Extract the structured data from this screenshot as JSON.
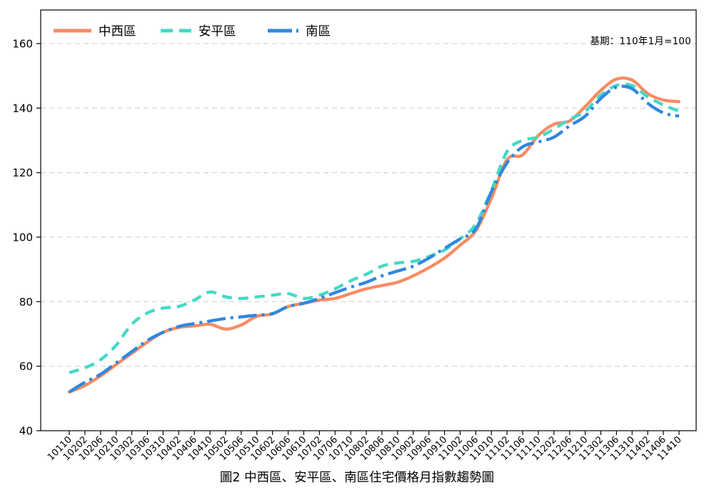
{
  "title": {
    "text": "圖2 中西區、安平區、南區住宅價格月指數趨勢圖"
  },
  "annotation": {
    "text": "基期：110年1月=100"
  },
  "legend": {
    "items": [
      {
        "label": "中西區",
        "color": "#F88B62",
        "style": "solid"
      },
      {
        "label": "安平區",
        "color": "#43D9C6",
        "style": "dashed"
      },
      {
        "label": "南區",
        "color": "#2F87E0",
        "style": "dashdot"
      }
    ]
  },
  "chart_data": {
    "type": "line",
    "title": "圖2 中西區、安平區、南區住宅價格月指數趨勢圖",
    "note": "基期：110年1月=100",
    "xlabel": "",
    "ylabel": "",
    "ylim": [
      40,
      160
    ],
    "yticks": [
      40,
      60,
      80,
      100,
      120,
      140,
      160
    ],
    "grid": "horizontal-dashed",
    "legend_position": "top-left-inside",
    "categories": [
      "10110",
      "10202",
      "10206",
      "10210",
      "10302",
      "10306",
      "10310",
      "10402",
      "10406",
      "10410",
      "10502",
      "10506",
      "10510",
      "10602",
      "10606",
      "10610",
      "10702",
      "10706",
      "10710",
      "10802",
      "10806",
      "10810",
      "10902",
      "10906",
      "10910",
      "11002",
      "11006",
      "11010",
      "11102",
      "11106",
      "11110",
      "11202",
      "11206",
      "11210",
      "11302",
      "11306",
      "11310",
      "11402",
      "11406",
      "11410"
    ],
    "series": [
      {
        "name": "中西區",
        "color": "#F88B62",
        "line_style": "solid",
        "values": [
          52,
          54,
          57,
          60.5,
          64,
          67.5,
          70.5,
          72,
          72.5,
          73,
          71.5,
          72.8,
          75.5,
          76.2,
          78.5,
          79.5,
          80.5,
          81,
          82.5,
          84,
          85,
          86,
          88,
          90.5,
          93.5,
          97.5,
          102,
          112,
          124,
          125.5,
          131.5,
          135,
          136,
          140.5,
          145.5,
          149,
          148.7,
          144.5,
          142.5,
          142
        ]
      },
      {
        "name": "安平區",
        "color": "#43D9C6",
        "line_style": "dashed",
        "values": [
          58,
          59.5,
          62,
          66.5,
          73,
          76.5,
          78,
          78.5,
          80.5,
          83,
          81.5,
          81,
          81.5,
          82,
          82.5,
          81,
          82,
          84,
          86.5,
          88.5,
          91,
          92,
          92.5,
          94,
          96,
          99.5,
          104,
          114.5,
          126.5,
          130,
          131,
          133.5,
          136.5,
          139,
          144,
          147,
          147,
          143.5,
          141,
          139
        ]
      },
      {
        "name": "南區",
        "color": "#2F87E0",
        "line_style": "dashdot",
        "values": [
          52,
          55,
          57.5,
          61,
          64.5,
          68,
          70.5,
          72.3,
          73.2,
          74,
          74.8,
          75.3,
          75.8,
          76.3,
          78.5,
          79.5,
          81,
          82.8,
          84.5,
          86,
          88,
          89.5,
          91,
          93.5,
          96.5,
          99.5,
          102.5,
          114,
          123,
          128,
          129.5,
          131,
          134.5,
          137.5,
          143,
          146.5,
          146,
          141.5,
          138.5,
          137.5
        ]
      }
    ]
  }
}
